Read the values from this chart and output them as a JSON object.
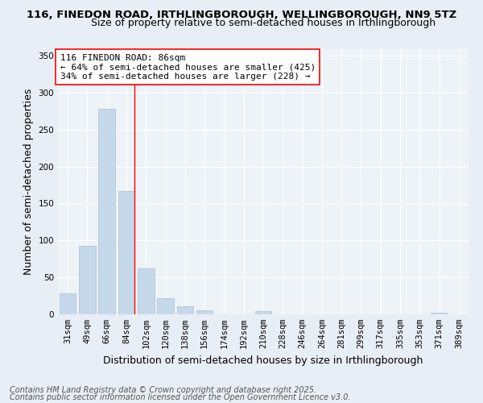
{
  "title": "116, FINEDON ROAD, IRTHLINGBOROUGH, WELLINGBOROUGH, NN9 5TZ",
  "subtitle": "Size of property relative to semi-detached houses in Irthlingborough",
  "xlabel": "Distribution of semi-detached houses by size in Irthlingborough",
  "ylabel": "Number of semi-detached properties",
  "categories": [
    "31sqm",
    "49sqm",
    "66sqm",
    "84sqm",
    "102sqm",
    "120sqm",
    "138sqm",
    "156sqm",
    "174sqm",
    "192sqm",
    "210sqm",
    "228sqm",
    "246sqm",
    "264sqm",
    "281sqm",
    "299sqm",
    "317sqm",
    "335sqm",
    "353sqm",
    "371sqm",
    "389sqm"
  ],
  "values": [
    28,
    93,
    278,
    167,
    62,
    22,
    11,
    5,
    0,
    0,
    4,
    0,
    0,
    0,
    0,
    0,
    0,
    0,
    0,
    2,
    0
  ],
  "bar_color": "#c6d9ea",
  "bar_edge_color": "#a8c0d6",
  "red_line_index": 3,
  "annotation_title": "116 FINEDON ROAD: 86sqm",
  "annotation_line1": "← 64% of semi-detached houses are smaller (425)",
  "annotation_line2": "34% of semi-detached houses are larger (228) →",
  "ylim": [
    0,
    360
  ],
  "yticks": [
    0,
    50,
    100,
    150,
    200,
    250,
    300,
    350
  ],
  "footer1": "Contains HM Land Registry data © Crown copyright and database right 2025.",
  "footer2": "Contains public sector information licensed under the Open Government Licence v3.0.",
  "bg_color": "#e8eef5",
  "plot_bg_color": "#eef3f8",
  "grid_color": "#ffffff",
  "title_fontsize": 9.5,
  "subtitle_fontsize": 9,
  "axis_label_fontsize": 9,
  "tick_fontsize": 7.5,
  "annotation_fontsize": 8,
  "footer_fontsize": 7
}
